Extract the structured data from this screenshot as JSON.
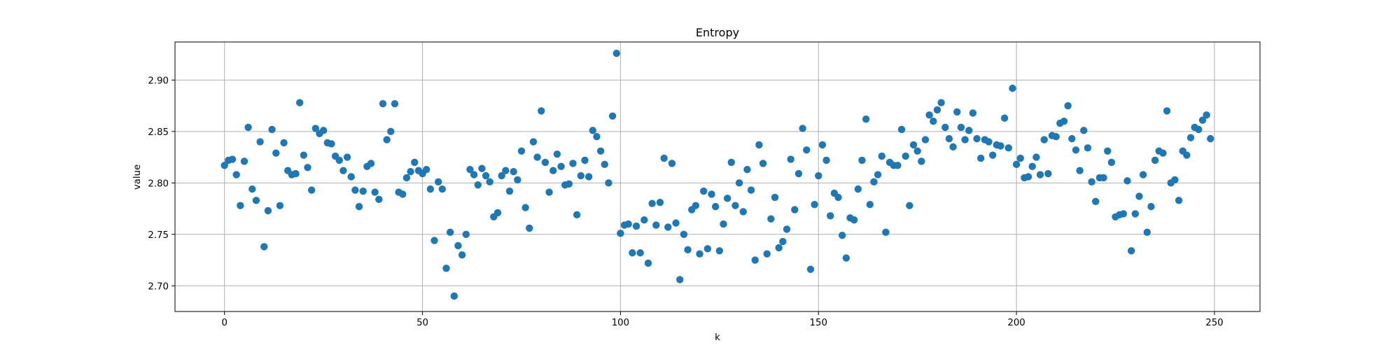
{
  "chart_data": {
    "type": "scatter",
    "title": "Entropy",
    "xlabel": "k",
    "ylabel": "value",
    "xlim": [
      -12.5,
      261.5
    ],
    "ylim": [
      2.675,
      2.937
    ],
    "grid": true,
    "color": "#1f77b4",
    "xticks": [
      0,
      50,
      100,
      150,
      200,
      250
    ],
    "xtick_labels": [
      "0",
      "50",
      "100",
      "150",
      "200",
      "250"
    ],
    "yticks": [
      2.7,
      2.75,
      2.8,
      2.85,
      2.9
    ],
    "ytick_labels": [
      "2.70",
      "2.75",
      "2.80",
      "2.85",
      "2.90"
    ],
    "x": [
      0,
      1,
      2,
      3,
      4,
      5,
      6,
      7,
      8,
      9,
      10,
      11,
      12,
      13,
      14,
      15,
      16,
      17,
      18,
      19,
      20,
      21,
      22,
      23,
      24,
      25,
      26,
      27,
      28,
      29,
      30,
      31,
      32,
      33,
      34,
      35,
      36,
      37,
      38,
      39,
      40,
      41,
      42,
      43,
      44,
      45,
      46,
      47,
      48,
      49,
      50,
      51,
      52,
      53,
      54,
      55,
      56,
      57,
      58,
      59,
      60,
      61,
      62,
      63,
      64,
      65,
      66,
      67,
      68,
      69,
      70,
      71,
      72,
      73,
      74,
      75,
      76,
      77,
      78,
      79,
      80,
      81,
      82,
      83,
      84,
      85,
      86,
      87,
      88,
      89,
      90,
      91,
      92,
      93,
      94,
      95,
      96,
      97,
      98,
      99,
      100,
      101,
      102,
      103,
      104,
      105,
      106,
      107,
      108,
      109,
      110,
      111,
      112,
      113,
      114,
      115,
      116,
      117,
      118,
      119,
      120,
      121,
      122,
      123,
      124,
      125,
      126,
      127,
      128,
      129,
      130,
      131,
      132,
      133,
      134,
      135,
      136,
      137,
      138,
      139,
      140,
      141,
      142,
      143,
      144,
      145,
      146,
      147,
      148,
      149,
      150,
      151,
      152,
      153,
      154,
      155,
      156,
      157,
      158,
      159,
      160,
      161,
      162,
      163,
      164,
      165,
      166,
      167,
      168,
      169,
      170,
      171,
      172,
      173,
      174,
      175,
      176,
      177,
      178,
      179,
      180,
      181,
      182,
      183,
      184,
      185,
      186,
      187,
      188,
      189,
      190,
      191,
      192,
      193,
      194,
      195,
      196,
      197,
      198,
      199,
      200,
      201,
      202,
      203,
      204,
      205,
      206,
      207,
      208,
      209,
      210,
      211,
      212,
      213,
      214,
      215,
      216,
      217,
      218,
      219,
      220,
      221,
      222,
      223,
      224,
      225,
      226,
      227,
      228,
      229,
      230,
      231,
      232,
      233,
      234,
      235,
      236,
      237,
      238,
      239,
      240,
      241,
      242,
      243,
      244,
      245,
      246,
      247,
      248,
      249
    ],
    "y": [
      2.817,
      2.822,
      2.823,
      2.808,
      2.778,
      2.821,
      2.854,
      2.794,
      2.783,
      2.84,
      2.738,
      2.773,
      2.852,
      2.829,
      2.778,
      2.839,
      2.812,
      2.808,
      2.809,
      2.878,
      2.827,
      2.815,
      2.793,
      2.853,
      2.848,
      2.851,
      2.839,
      2.838,
      2.826,
      2.822,
      2.812,
      2.825,
      2.806,
      2.793,
      2.777,
      2.792,
      2.816,
      2.819,
      2.791,
      2.784,
      2.877,
      2.842,
      2.85,
      2.877,
      2.791,
      2.789,
      2.805,
      2.811,
      2.82,
      2.812,
      2.809,
      2.813,
      2.794,
      2.744,
      2.801,
      2.794,
      2.717,
      2.752,
      2.69,
      2.739,
      2.73,
      2.75,
      2.813,
      2.808,
      2.798,
      2.814,
      2.807,
      2.801,
      2.767,
      2.771,
      2.807,
      2.812,
      2.792,
      2.811,
      2.803,
      2.831,
      2.776,
      2.756,
      2.84,
      2.825,
      2.87,
      2.82,
      2.791,
      2.812,
      2.828,
      2.816,
      2.798,
      2.799,
      2.819,
      2.769,
      2.807,
      2.822,
      2.806,
      2.851,
      2.845,
      2.831,
      2.818,
      2.8,
      2.865,
      2.926,
      2.751,
      2.759,
      2.76,
      2.732,
      2.758,
      2.732,
      2.764,
      2.722,
      2.78,
      2.759,
      2.781,
      2.824,
      2.757,
      2.819,
      2.761,
      2.706,
      2.75,
      2.735,
      2.774,
      2.778,
      2.731,
      2.792,
      2.736,
      2.789,
      2.777,
      2.734,
      2.76,
      2.785,
      2.82,
      2.778,
      2.8,
      2.772,
      2.813,
      2.793,
      2.725,
      2.837,
      2.819,
      2.731,
      2.765,
      2.786,
      2.737,
      2.743,
      2.755,
      2.823,
      2.774,
      2.809,
      2.853,
      2.832,
      2.716,
      2.779,
      2.807,
      2.837,
      2.822,
      2.768,
      2.79,
      2.786,
      2.749,
      2.727,
      2.766,
      2.764,
      2.794,
      2.822,
      2.862,
      2.779,
      2.801,
      2.808,
      2.826,
      2.752,
      2.82,
      2.817,
      2.817,
      2.852,
      2.826,
      2.778,
      2.837,
      2.831,
      2.821,
      2.842,
      2.866,
      2.86,
      2.871,
      2.878,
      2.854,
      2.843,
      2.835,
      2.869,
      2.854,
      2.842,
      2.851,
      2.868,
      2.843,
      2.824,
      2.842,
      2.84,
      2.827,
      2.837,
      2.836,
      2.863,
      2.834,
      2.892,
      2.818,
      2.824,
      2.805,
      2.806,
      2.816,
      2.825,
      2.808,
      2.842,
      2.809,
      2.846,
      2.845,
      2.858,
      2.86,
      2.875,
      2.843,
      2.832,
      2.812,
      2.851,
      2.834,
      2.801,
      2.782,
      2.805,
      2.805,
      2.831,
      2.82,
      2.767,
      2.769,
      2.77,
      2.802,
      2.734,
      2.77,
      2.787,
      2.808,
      2.752,
      2.777,
      2.822,
      2.831,
      2.829,
      2.87,
      2.8,
      2.803,
      2.783,
      2.831,
      2.827,
      2.844,
      2.854,
      2.852,
      2.861,
      2.866,
      2.843
    ]
  }
}
